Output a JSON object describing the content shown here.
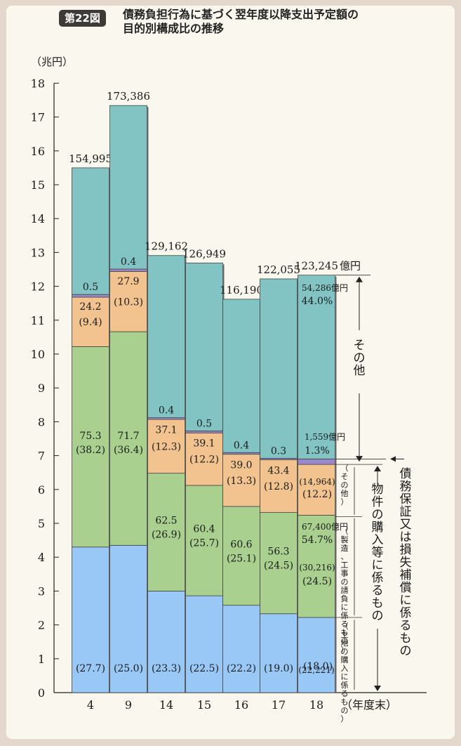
{
  "figure": {
    "badge": "第22図",
    "title_line1": "債務負担行為に基づく翌年度以降支出予定額の",
    "title_line2": "目的別構成比の推移"
  },
  "chart_data": {
    "type": "bar",
    "stacked": true,
    "ylabel": "（兆円）",
    "xlabel": "（年度末）",
    "ylim": [
      0,
      18
    ],
    "yticks": [
      0,
      1,
      2,
      3,
      4,
      5,
      6,
      7,
      8,
      9,
      10,
      11,
      12,
      13,
      14,
      15,
      16,
      17,
      18
    ],
    "grid": false,
    "categories": [
      "4",
      "9",
      "14",
      "15",
      "16",
      "17",
      "18"
    ],
    "totals_label": [
      "154,995",
      "173,386",
      "129,162",
      "126,949",
      "116,190",
      "122,055",
      "123,245"
    ],
    "totals_unit": "億円",
    "colors": {
      "land": "#99c8f6",
      "construction": "#a9d08e",
      "other_purchase": "#f2c38f",
      "guarantee": "#9a88cc",
      "other": "#82c4c4"
    },
    "segments": {
      "land": [
        4.3,
        4.35,
        3.0,
        2.86,
        2.58,
        2.33,
        2.22
      ],
      "construction": [
        5.92,
        6.31,
        3.48,
        3.26,
        2.92,
        2.99,
        3.02
      ],
      "other_purchase": [
        1.46,
        1.78,
        1.59,
        1.55,
        1.54,
        1.56,
        1.5
      ],
      "guarantee": [
        0.08,
        0.07,
        0.05,
        0.06,
        0.05,
        0.04,
        0.16
      ],
      "other": [
        3.74,
        4.83,
        4.79,
        4.96,
        4.53,
        5.3,
        5.43
      ]
    },
    "labels": {
      "land": [
        "(27.7)",
        "(25.0)",
        "(23.3)",
        "(22.5)",
        "(22.2)",
        "(19.0)",
        "(18.0)"
      ],
      "construction": [
        "(38.2)",
        "(36.4)",
        "(26.9)",
        "(25.7)",
        "(25.1)",
        "(24.5)",
        "(24.5)"
      ],
      "purchase_total": [
        "75.3",
        "71.7",
        "62.5",
        "60.4",
        "60.6",
        "56.3",
        "54.7%"
      ],
      "other_purchase": [
        "(9.4)",
        "(10.3)",
        "(12.3)",
        "(12.2)",
        "(13.3)",
        "(12.8)",
        "(12.2)"
      ],
      "guarantee": [
        "0.5",
        "0.4",
        "0.4",
        "0.5",
        "0.4",
        "0.3",
        "1.3%"
      ],
      "other": [
        "24.2",
        "27.9",
        "37.1",
        "39.1",
        "39.0",
        "43.4",
        "44.0%"
      ]
    },
    "fy18_amounts": {
      "other": "54,286",
      "guarantee": "1,559",
      "purchase": "67,400",
      "other_purchase": "(14,964)",
      "construction": "(30,216)",
      "land": "(22,221)",
      "unit": "億円"
    },
    "annotations": {
      "other": "その他",
      "purchase": "物件の購入等に係るもの",
      "guarantee": "債務保証又は損失補償に係るもの",
      "sub_other": "（その他）",
      "sub_construction": "（製造、工事の請負に係るもの）",
      "sub_land": "（土地の購入に係るもの）"
    }
  }
}
